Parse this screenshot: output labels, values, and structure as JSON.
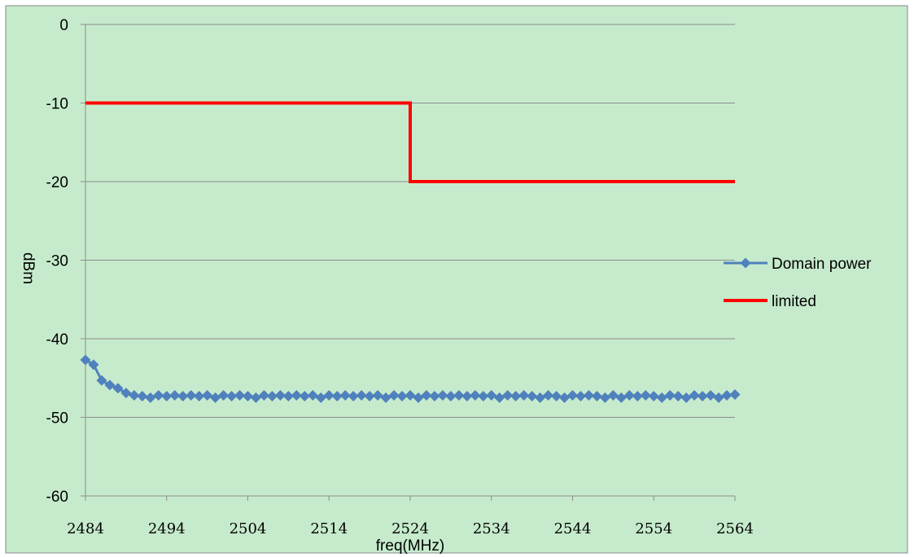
{
  "chart_data": {
    "type": "line",
    "title": "",
    "xlabel": "freq(MHz)",
    "ylabel": "dBm",
    "xlim": [
      2484,
      2564
    ],
    "ylim": [
      -60,
      0
    ],
    "x_ticks": [
      "2484",
      "2494",
      "2504",
      "2514",
      "2524",
      "2534",
      "2544",
      "2554",
      "2564"
    ],
    "y_ticks": [
      "0",
      "-10",
      "-20",
      "-30",
      "-40",
      "-50",
      "-60"
    ],
    "grid": "horizontal",
    "legend_position": "right",
    "background_color": "#c6ebcc",
    "series": [
      {
        "name": "Domain power",
        "color": "#4f81bd",
        "marker": "diamond",
        "x": [
          2484,
          2485,
          2486,
          2487,
          2488,
          2489,
          2490,
          2491,
          2492,
          2493,
          2494,
          2495,
          2496,
          2497,
          2498,
          2499,
          2500,
          2501,
          2502,
          2503,
          2504,
          2505,
          2506,
          2507,
          2508,
          2509,
          2510,
          2511,
          2512,
          2513,
          2514,
          2515,
          2516,
          2517,
          2518,
          2519,
          2520,
          2521,
          2522,
          2523,
          2524,
          2525,
          2526,
          2527,
          2528,
          2529,
          2530,
          2531,
          2532,
          2533,
          2534,
          2535,
          2536,
          2537,
          2538,
          2539,
          2540,
          2541,
          2542,
          2543,
          2544,
          2545,
          2546,
          2547,
          2548,
          2549,
          2550,
          2551,
          2552,
          2553,
          2554,
          2555,
          2556,
          2557,
          2558,
          2559,
          2560,
          2561,
          2562,
          2563,
          2564
        ],
        "y": [
          -42.7,
          -43.3,
          -45.3,
          -45.9,
          -46.3,
          -46.9,
          -47.2,
          -47.3,
          -47.5,
          -47.2,
          -47.3,
          -47.2,
          -47.3,
          -47.2,
          -47.3,
          -47.2,
          -47.5,
          -47.2,
          -47.3,
          -47.2,
          -47.3,
          -47.5,
          -47.2,
          -47.3,
          -47.2,
          -47.3,
          -47.2,
          -47.3,
          -47.2,
          -47.5,
          -47.2,
          -47.3,
          -47.2,
          -47.3,
          -47.2,
          -47.3,
          -47.2,
          -47.5,
          -47.2,
          -47.3,
          -47.2,
          -47.5,
          -47.2,
          -47.3,
          -47.2,
          -47.3,
          -47.2,
          -47.3,
          -47.2,
          -47.3,
          -47.2,
          -47.5,
          -47.2,
          -47.3,
          -47.2,
          -47.3,
          -47.5,
          -47.2,
          -47.3,
          -47.5,
          -47.2,
          -47.3,
          -47.2,
          -47.3,
          -47.5,
          -47.2,
          -47.5,
          -47.2,
          -47.3,
          -47.2,
          -47.3,
          -47.5,
          -47.2,
          -47.3,
          -47.5,
          -47.2,
          -47.3,
          -47.2,
          -47.5,
          -47.2,
          -47.1
        ]
      },
      {
        "name": "limited",
        "color": "#ff0000",
        "marker": "none",
        "x": [
          2484,
          2524,
          2524,
          2564
        ],
        "y": [
          -10,
          -10,
          -20,
          -20
        ]
      }
    ]
  }
}
